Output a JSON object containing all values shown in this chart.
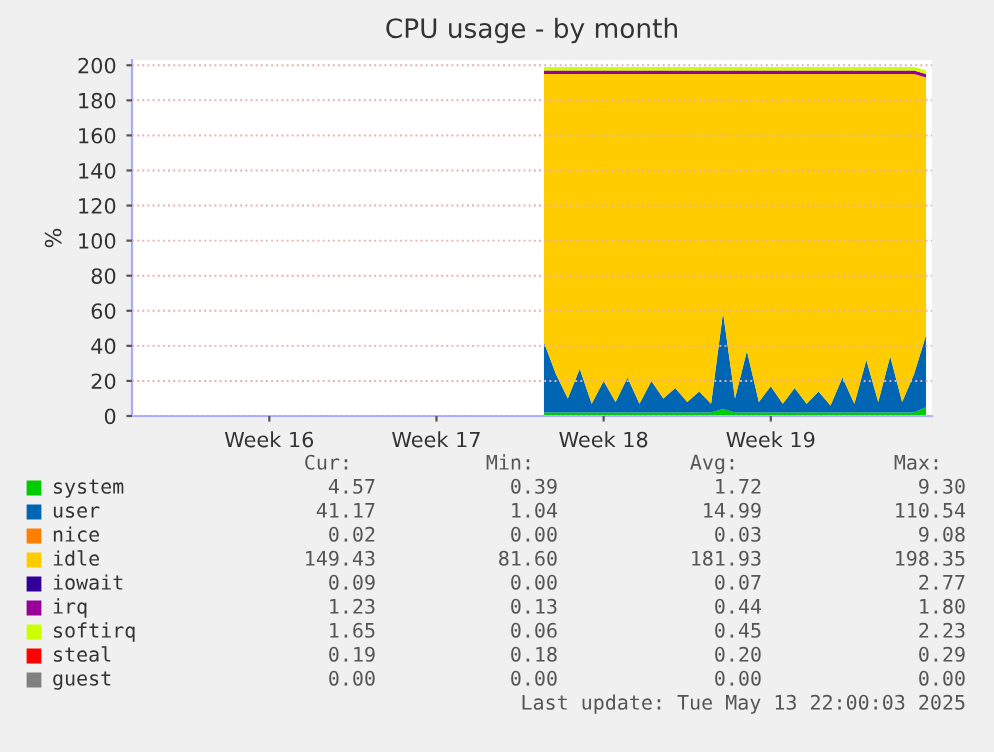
{
  "chart_data": {
    "type": "area",
    "title": "CPU usage - by month",
    "ylabel": "%",
    "stacked": true,
    "categories": [
      null,
      null,
      null,
      null,
      null,
      null,
      null,
      null,
      null,
      null,
      null,
      "Week 16",
      null,
      null,
      null,
      null,
      null,
      null,
      null,
      null,
      null,
      null,
      null,
      null,
      null,
      "Week 17",
      null,
      null,
      null,
      null,
      null,
      null,
      null,
      null,
      null,
      null,
      null,
      null,
      null,
      "Week 18",
      null,
      null,
      null,
      null,
      null,
      null,
      null,
      null,
      null,
      null,
      null,
      null,
      null,
      "Week 19",
      null,
      null,
      null,
      null,
      null,
      null,
      null,
      null,
      null,
      null,
      null,
      null,
      null
    ],
    "series": [
      {
        "name": "system",
        "color": "#00cc00",
        "values": [
          null,
          null,
          null,
          null,
          null,
          null,
          null,
          null,
          null,
          null,
          null,
          null,
          null,
          null,
          null,
          null,
          null,
          null,
          null,
          null,
          null,
          null,
          null,
          null,
          null,
          null,
          null,
          null,
          null,
          null,
          null,
          null,
          null,
          null,
          2,
          2,
          2,
          2,
          2,
          2,
          2,
          2,
          2,
          2,
          2,
          2,
          2,
          2,
          2,
          4,
          2,
          2,
          2,
          2,
          2,
          2,
          2,
          2,
          2,
          2,
          2,
          2,
          2,
          2,
          2,
          2,
          5
        ]
      },
      {
        "name": "user",
        "color": "#0066b3",
        "values": [
          null,
          null,
          null,
          null,
          null,
          null,
          null,
          null,
          null,
          null,
          null,
          null,
          null,
          null,
          null,
          null,
          null,
          null,
          null,
          null,
          null,
          null,
          null,
          null,
          null,
          null,
          null,
          null,
          null,
          null,
          null,
          null,
          null,
          null,
          40,
          22,
          8,
          25,
          5,
          18,
          6,
          20,
          5,
          18,
          8,
          14,
          6,
          12,
          5,
          55,
          8,
          35,
          6,
          15,
          5,
          14,
          5,
          12,
          4,
          20,
          5,
          30,
          6,
          32,
          6,
          22,
          41
        ]
      },
      {
        "name": "nice",
        "color": "#ff8000",
        "values": [
          null,
          null,
          null,
          null,
          null,
          null,
          null,
          null,
          null,
          null,
          null,
          null,
          null,
          null,
          null,
          null,
          null,
          null,
          null,
          null,
          null,
          null,
          null,
          null,
          null,
          null,
          null,
          null,
          null,
          null,
          null,
          null,
          null,
          null,
          null,
          null,
          null,
          null,
          null,
          null,
          null,
          null,
          null,
          null,
          null,
          null,
          null,
          null,
          null,
          null,
          null,
          null,
          null,
          null,
          null,
          null,
          null,
          null,
          null,
          null,
          null,
          null,
          null,
          null,
          null,
          null,
          null
        ]
      },
      {
        "name": "idle",
        "color": "#ffcc00",
        "values": [
          null,
          null,
          null,
          null,
          null,
          null,
          null,
          null,
          null,
          null,
          null,
          null,
          null,
          null,
          null,
          null,
          null,
          null,
          null,
          null,
          null,
          null,
          null,
          null,
          null,
          null,
          null,
          null,
          null,
          null,
          null,
          null,
          null,
          null,
          153,
          171,
          185,
          168,
          188,
          175,
          187,
          173,
          188,
          175,
          185,
          179,
          187,
          181,
          188,
          136,
          185,
          158,
          187,
          178,
          188,
          179,
          188,
          181,
          189,
          173,
          188,
          163,
          187,
          161,
          187,
          171,
          147
        ]
      },
      {
        "name": "iowait",
        "color": "#330099",
        "values": [
          null,
          null,
          null,
          null,
          null,
          null,
          null,
          null,
          null,
          null,
          null,
          null,
          null,
          null,
          null,
          null,
          null,
          null,
          null,
          null,
          null,
          null,
          null,
          null,
          null,
          null,
          null,
          null,
          null,
          null,
          null,
          null,
          null,
          null,
          null,
          null,
          null,
          null,
          null,
          null,
          null,
          null,
          null,
          null,
          null,
          null,
          null,
          null,
          null,
          null,
          null,
          null,
          null,
          null,
          null,
          null,
          null,
          null,
          null,
          null,
          null,
          null,
          null,
          null,
          null,
          null,
          null
        ]
      },
      {
        "name": "irq",
        "color": "#990099",
        "values": [
          null,
          null,
          null,
          null,
          null,
          null,
          null,
          null,
          null,
          null,
          null,
          null,
          null,
          null,
          null,
          null,
          null,
          null,
          null,
          null,
          null,
          null,
          null,
          null,
          null,
          null,
          null,
          null,
          null,
          null,
          null,
          null,
          null,
          null,
          2,
          2,
          2,
          2,
          2,
          2,
          2,
          2,
          2,
          2,
          2,
          2,
          2,
          2,
          2,
          2,
          2,
          2,
          2,
          2,
          2,
          2,
          2,
          2,
          2,
          2,
          2,
          2,
          2,
          2,
          2,
          2,
          2
        ]
      },
      {
        "name": "softirq",
        "color": "#ccff00",
        "values": [
          null,
          null,
          null,
          null,
          null,
          null,
          null,
          null,
          null,
          null,
          null,
          null,
          null,
          null,
          null,
          null,
          null,
          null,
          null,
          null,
          null,
          null,
          null,
          null,
          null,
          null,
          null,
          null,
          null,
          null,
          null,
          null,
          null,
          null,
          2,
          2,
          2,
          2,
          2,
          2,
          2,
          2,
          2,
          2,
          2,
          2,
          2,
          2,
          2,
          2,
          2,
          2,
          2,
          2,
          2,
          2,
          2,
          2,
          2,
          2,
          2,
          2,
          2,
          2,
          2,
          2,
          2
        ]
      },
      {
        "name": "steal",
        "color": "#ff0000",
        "values": [
          null,
          null,
          null,
          null,
          null,
          null,
          null,
          null,
          null,
          null,
          null,
          null,
          null,
          null,
          null,
          null,
          null,
          null,
          null,
          null,
          null,
          null,
          null,
          null,
          null,
          null,
          null,
          null,
          null,
          null,
          null,
          null,
          null,
          null,
          null,
          null,
          null,
          null,
          null,
          null,
          null,
          null,
          null,
          null,
          null,
          null,
          null,
          null,
          null,
          null,
          null,
          null,
          null,
          null,
          null,
          null,
          null,
          null,
          null,
          null,
          null,
          null,
          null,
          null,
          null,
          null,
          null
        ]
      },
      {
        "name": "guest",
        "color": "#808080",
        "values": [
          null,
          null,
          null,
          null,
          null,
          null,
          null,
          null,
          null,
          null,
          null,
          null,
          null,
          null,
          null,
          null,
          null,
          null,
          null,
          null,
          null,
          null,
          null,
          null,
          null,
          null,
          null,
          null,
          null,
          null,
          null,
          null,
          null,
          null,
          null,
          null,
          null,
          null,
          null,
          null,
          null,
          null,
          null,
          null,
          null,
          null,
          null,
          null,
          null,
          null,
          null,
          null,
          null,
          null,
          null,
          null,
          null,
          null,
          null,
          null,
          null,
          null,
          null,
          null,
          null,
          null,
          null
        ]
      }
    ],
    "ylim": [
      0,
      203
    ],
    "yticks": [
      0,
      20,
      40,
      60,
      80,
      100,
      120,
      140,
      160,
      180,
      200
    ],
    "grid": "y",
    "legend": "bottom",
    "annotations": [
      "Cur:",
      "Min:",
      "Avg:",
      "Max:",
      "4.57",
      "0.39",
      "1.72",
      "9.30",
      "41.17",
      "1.04",
      "14.99",
      "110.54",
      "0.02",
      "0.00",
      "0.03",
      "9.08",
      "149.43",
      "81.60",
      "181.93",
      "198.35",
      "0.09",
      "0.00",
      "0.07",
      "2.77",
      "1.23",
      "0.13",
      "0.44",
      "1.80",
      "1.65",
      "0.06",
      "0.45",
      "2.23",
      "0.19",
      "0.18",
      "0.20",
      "0.29",
      "0.00",
      "0.00",
      "0.00",
      "0.00",
      "Last update: Tue May 13 22:00:03 2025"
    ]
  }
}
